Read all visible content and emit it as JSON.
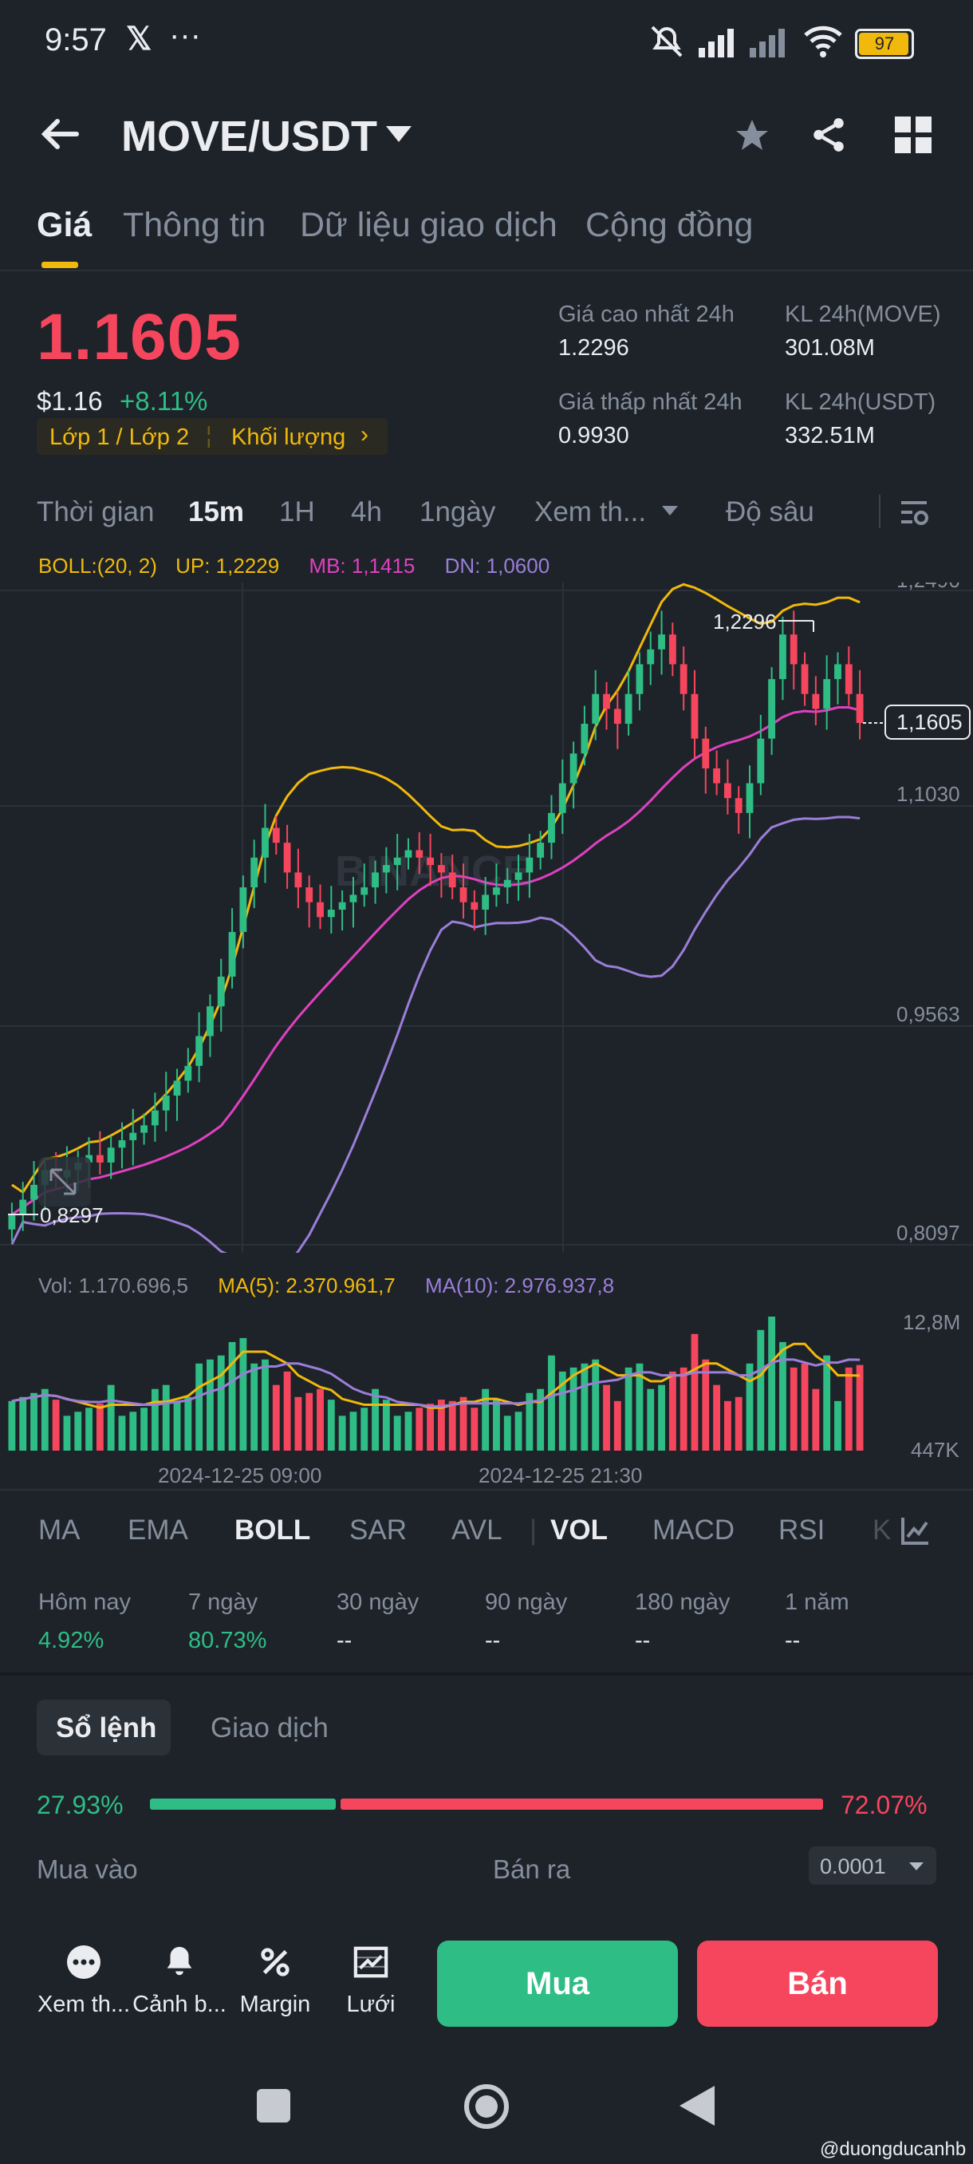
{
  "status_bar": {
    "time": "9:57",
    "battery": "97"
  },
  "header": {
    "pair": "MOVE/USDT"
  },
  "tabs": [
    {
      "label": "Giá"
    },
    {
      "label": "Thông tin"
    },
    {
      "label": "Dữ liệu giao dịch"
    },
    {
      "label": "Cộng đồng"
    }
  ],
  "price": {
    "last": "1.1605",
    "usd": "$1.16",
    "change": "+8.11%",
    "tag_layer": "Lớp 1 / Lớp 2",
    "tag_volume": "Khối lượng",
    "high_label": "Giá cao nhất 24h",
    "high_value": "1.2296",
    "low_label": "Giá thấp nhất 24h",
    "low_value": "0.9930",
    "vol_move_label": "KL 24h(MOVE)",
    "vol_move_value": "301.08M",
    "vol_usdt_label": "KL 24h(USDT)",
    "vol_usdt_value": "332.51M"
  },
  "chart_toolbar": {
    "time": "Thời gian",
    "intervals": [
      "15m",
      "1H",
      "4h",
      "1ngày"
    ],
    "more": "Xem th...",
    "depth": "Độ sâu"
  },
  "boll": {
    "label": "BOLL:(20, 2)",
    "up": "UP: 1,2229",
    "mb": "MB: 1,1415",
    "dn": "DN: 1,0600"
  },
  "chart_axis": {
    "price_ticks": [
      "1,2496",
      "1,1030",
      "0,9563",
      "0,8097"
    ],
    "current_price": "1,1605",
    "high_marker": "1,2296",
    "low_marker": "0,8297",
    "vol_ticks": [
      "12,8M",
      "447K"
    ],
    "time_ticks": [
      "2024-12-25 09:00",
      "2024-12-25 21:30"
    ],
    "watermark": "BINANCE"
  },
  "vol_legend": {
    "vol": "Vol: 1.170.696,5",
    "ma5": "MA(5): 2.370.961,7",
    "ma10": "MA(10): 2.976.937,8"
  },
  "indicator_tabs": [
    "MA",
    "EMA",
    "BOLL",
    "SAR",
    "AVL",
    "VOL",
    "MACD",
    "RSI",
    "K"
  ],
  "performance": [
    {
      "label": "Hôm nay",
      "value": "4.92%"
    },
    {
      "label": "7 ngày",
      "value": "80.73%"
    },
    {
      "label": "30 ngày",
      "value": "--"
    },
    {
      "label": "90 ngày",
      "value": "--"
    },
    {
      "label": "180 ngày",
      "value": "--"
    },
    {
      "label": "1 năm",
      "value": "--"
    }
  ],
  "orderbook": {
    "tab_book": "Sổ lệnh",
    "tab_trades": "Giao dịch",
    "buy_pct": "27.93%",
    "sell_pct": "72.07%",
    "buy_fraction": 0.2793,
    "buy_label": "Mua vào",
    "sell_label": "Bán ra",
    "precision": "0.0001"
  },
  "bottom_bar": {
    "items": [
      "Xem th...",
      "Cảnh b...",
      "Margin",
      "Lưới"
    ],
    "buy": "Mua",
    "sell": "Bán"
  },
  "watermark_user": "@duongducanhb",
  "colors": {
    "bg": "#1e2329",
    "green": "#2ebd85",
    "red": "#f6465d",
    "yellow": "#f0b90b",
    "up": "#f0b90b",
    "mb": "#e040c0",
    "dn": "#9b7ed9"
  },
  "chart_data": {
    "type": "candlestick",
    "price_range": [
      0.8097,
      1.2496
    ],
    "close": [
      0.83,
      0.84,
      0.85,
      0.86,
      0.855,
      0.86,
      0.865,
      0.87,
      0.865,
      0.875,
      0.88,
      0.885,
      0.89,
      0.9,
      0.91,
      0.92,
      0.93,
      0.95,
      0.97,
      0.99,
      1.02,
      1.05,
      1.07,
      1.09,
      1.08,
      1.06,
      1.05,
      1.04,
      1.03,
      1.035,
      1.04,
      1.045,
      1.05,
      1.06,
      1.065,
      1.07,
      1.075,
      1.07,
      1.065,
      1.06,
      1.05,
      1.04,
      1.035,
      1.045,
      1.05,
      1.055,
      1.06,
      1.07,
      1.08,
      1.1,
      1.12,
      1.14,
      1.16,
      1.18,
      1.17,
      1.16,
      1.18,
      1.2,
      1.21,
      1.22,
      1.2,
      1.18,
      1.15,
      1.13,
      1.12,
      1.11,
      1.1,
      1.12,
      1.15,
      1.19,
      1.22,
      1.2,
      1.18,
      1.17,
      1.19,
      1.2,
      1.18,
      1.1605
    ]
  }
}
